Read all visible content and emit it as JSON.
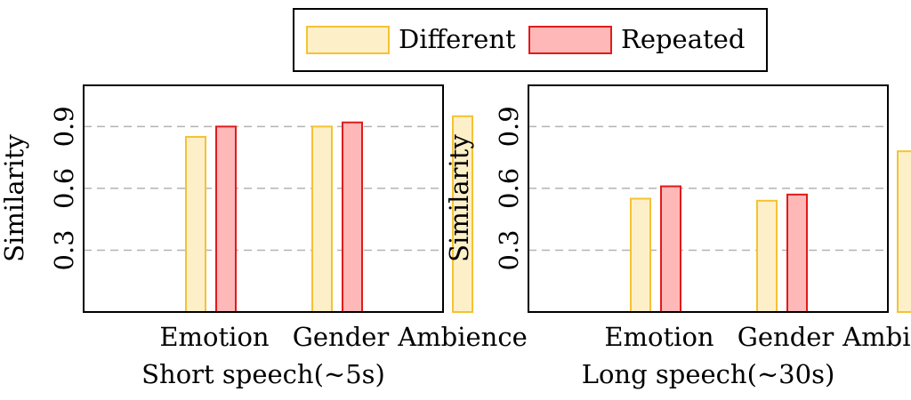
{
  "legend": {
    "placement": "top-center",
    "items": [
      {
        "label": "Different",
        "fill": "#fdf0c8",
        "stroke": "#f5c233"
      },
      {
        "label": "Repeated",
        "fill": "#ffb8b8",
        "stroke": "#e01b1b"
      }
    ]
  },
  "chart_data": [
    {
      "type": "bar",
      "title": "",
      "xlabel": "Short speech(∼5s)",
      "ylabel": "Similarity",
      "categories": [
        "Emotion",
        "Gender",
        "Ambience"
      ],
      "yticks": [
        "0.3",
        "0.6",
        "0.9"
      ],
      "ylim": [
        0,
        1.1
      ],
      "grid": true,
      "series": [
        {
          "name": "Different",
          "values": [
            0.85,
            0.9,
            0.95
          ]
        },
        {
          "name": "Repeated",
          "values": [
            0.9,
            0.92,
            null
          ]
        }
      ]
    },
    {
      "type": "bar",
      "title": "",
      "xlabel": "Long speech(∼30s)",
      "ylabel": "Similarity",
      "categories": [
        "Emotion",
        "Gender",
        "Ambience"
      ],
      "yticks": [
        "0.3",
        "0.6",
        "0.9"
      ],
      "ylim": [
        0,
        1.1
      ],
      "grid": true,
      "series": [
        {
          "name": "Different",
          "values": [
            0.55,
            0.54,
            0.78
          ]
        },
        {
          "name": "Repeated",
          "values": [
            0.61,
            0.57,
            null
          ]
        }
      ]
    }
  ]
}
